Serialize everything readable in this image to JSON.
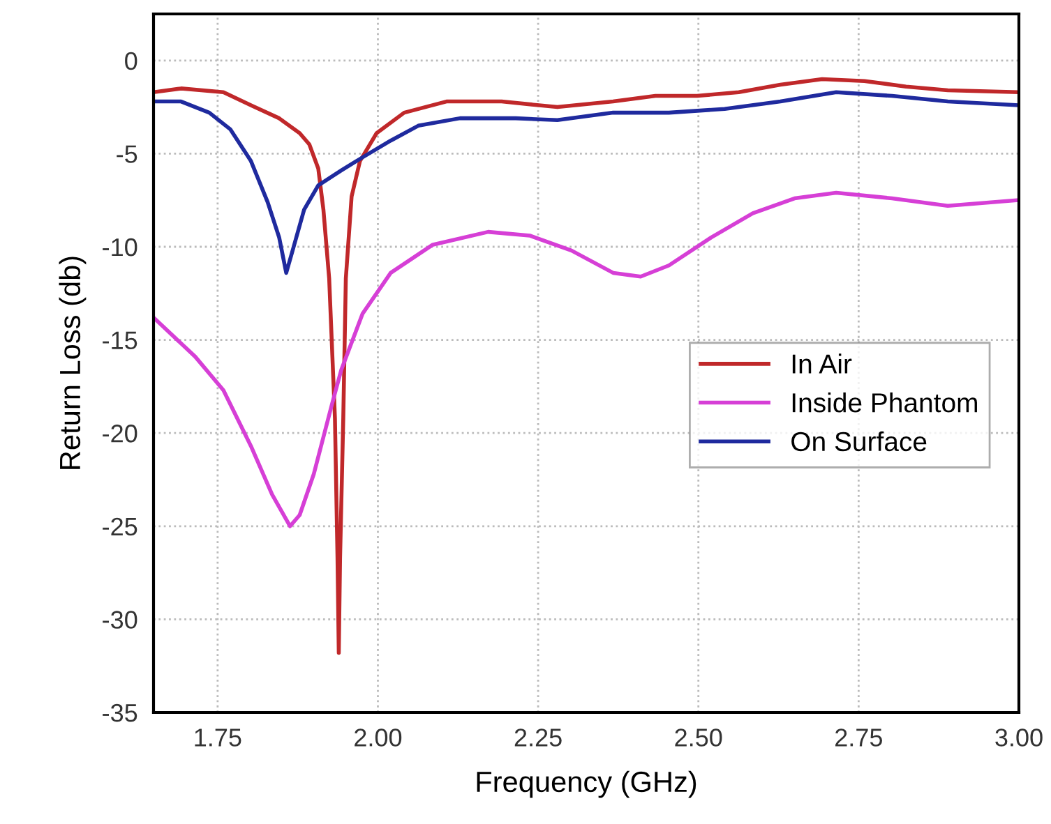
{
  "chart_data": {
    "type": "line",
    "xlabel": "Frequency (GHz)",
    "ylabel": "Return Loss (db)",
    "xlim": [
      1.65,
      3.0
    ],
    "xticks": [
      {
        "value": 1.75,
        "label": "1.75"
      },
      {
        "value": 2.0,
        "label": "2.00"
      },
      {
        "value": 2.25,
        "label": "2.25"
      },
      {
        "value": 2.5,
        "label": "2.50"
      },
      {
        "value": 2.75,
        "label": "2.75"
      },
      {
        "value": 3.0,
        "label": "3.00"
      }
    ],
    "ylim": [
      -35,
      2.5
    ],
    "yticks": [
      -35,
      -30,
      -25,
      -20,
      -15,
      -10,
      -5,
      0
    ],
    "grid": true,
    "legend": "right",
    "marker": "none",
    "line_style": "solid",
    "series": [
      {
        "name": "In Air",
        "color": "#c0282a",
        "x": [
          1.65,
          1.693,
          1.759,
          1.802,
          1.846,
          1.878,
          1.893,
          1.907,
          1.915,
          1.924,
          1.933,
          1.937,
          1.939,
          1.941,
          1.946,
          1.95,
          1.959,
          1.972,
          1.998,
          2.041,
          2.107,
          2.193,
          2.28,
          2.367,
          2.433,
          2.498,
          2.563,
          2.628,
          2.693,
          2.759,
          2.824,
          2.889,
          2.998
        ],
        "values": [
          -1.7,
          -1.5,
          -1.7,
          -2.4,
          -3.1,
          -3.9,
          -4.5,
          -5.8,
          -8,
          -11.7,
          -19.2,
          -26.7,
          -31.8,
          -26.7,
          -19.2,
          -11.7,
          -7.3,
          -5.4,
          -3.9,
          -2.8,
          -2.2,
          -2.2,
          -2.5,
          -2.2,
          -1.9,
          -1.9,
          -1.7,
          -1.3,
          -1.0,
          -1.1,
          -1.4,
          -1.6,
          -1.7
        ]
      },
      {
        "name": "Inside Phantom",
        "color": "#d63fd6",
        "x": [
          1.65,
          1.715,
          1.759,
          1.802,
          1.835,
          1.863,
          1.878,
          1.9,
          1.928,
          1.943,
          1.976,
          2.02,
          2.085,
          2.172,
          2.237,
          2.302,
          2.367,
          2.41,
          2.454,
          2.52,
          2.585,
          2.65,
          2.715,
          2.802,
          2.889,
          2.998
        ],
        "values": [
          -13.8,
          -15.9,
          -17.7,
          -20.7,
          -23.3,
          -25,
          -24.4,
          -22.2,
          -18.5,
          -16.6,
          -13.6,
          -11.4,
          -9.9,
          -9.2,
          -9.4,
          -10.2,
          -11.4,
          -11.6,
          -11,
          -9.5,
          -8.2,
          -7.4,
          -7.1,
          -7.4,
          -7.8,
          -7.5
        ]
      },
      {
        "name": "On Surface",
        "color": "#1f2a9e",
        "x": [
          1.65,
          1.693,
          1.737,
          1.77,
          1.802,
          1.828,
          1.846,
          1.857,
          1.867,
          1.885,
          1.907,
          1.943,
          1.976,
          2.02,
          2.063,
          2.128,
          2.215,
          2.28,
          2.367,
          2.454,
          2.541,
          2.628,
          2.715,
          2.802,
          2.889,
          2.998
        ],
        "values": [
          -2.2,
          -2.2,
          -2.8,
          -3.7,
          -5.4,
          -7.6,
          -9.5,
          -11.4,
          -10.2,
          -8,
          -6.7,
          -5.9,
          -5.2,
          -4.3,
          -3.5,
          -3.1,
          -3.1,
          -3.2,
          -2.8,
          -2.8,
          -2.6,
          -2.2,
          -1.7,
          -1.9,
          -2.2,
          -2.4
        ]
      }
    ]
  }
}
